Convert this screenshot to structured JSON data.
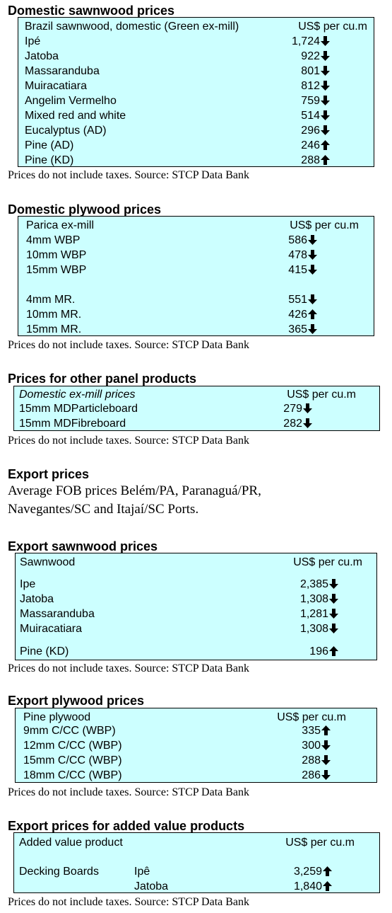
{
  "domestic_sawnwood": {
    "title": "Domestic sawnwood prices",
    "header_label": "Brazil sawnwood, domestic (Green ex-mill)",
    "header_unit": "US$ per cu.m",
    "rows": [
      {
        "label": "Ipé",
        "value": "1,724",
        "trend": "down"
      },
      {
        "label": "Jatoba",
        "value": "922",
        "trend": "down"
      },
      {
        "label": "Massaranduba",
        "value": "801",
        "trend": "down"
      },
      {
        "label": "Muiracatiara",
        "value": "812",
        "trend": "down"
      },
      {
        "label": "Angelim Vermelho",
        "value": "759",
        "trend": "down"
      },
      {
        "label": "Mixed red and white",
        "value": "514",
        "trend": "down"
      },
      {
        "label": "Eucalyptus (AD)",
        "value": "296",
        "trend": "down"
      },
      {
        "label": "Pine (AD)",
        "value": "246",
        "trend": "up"
      },
      {
        "label": "Pine (KD)",
        "value": "288",
        "trend": "up"
      }
    ],
    "note": "Prices do not include taxes. Source: STCP Data Bank"
  },
  "domestic_plywood": {
    "title": "Domestic plywood prices",
    "header_label": "Parica ex-mill",
    "header_unit": "US$ per cu.m",
    "rows": [
      {
        "label": "4mm WBP",
        "value": "586",
        "trend": "down"
      },
      {
        "label": "10mm WBP",
        "value": "478",
        "trend": "down"
      },
      {
        "label": "15mm WBP",
        "value": "415",
        "trend": "down"
      },
      {
        "label": "4mm MR.",
        "value": "551",
        "trend": "down"
      },
      {
        "label": "10mm MR.",
        "value": "426",
        "trend": "up"
      },
      {
        "label": "15mm MR.",
        "value": "365",
        "trend": "down"
      }
    ],
    "note": "Prices do not include taxes. Source: STCP Data Bank"
  },
  "other_panels": {
    "title": "Prices for other panel products",
    "header_label": "Domestic ex-mill prices",
    "header_unit": "US$ per cu.m",
    "rows": [
      {
        "label": "15mm MDParticleboard",
        "value": "279",
        "trend": "down"
      },
      {
        "label": "15mm MDFibreboard",
        "value": "282",
        "trend": "down"
      }
    ],
    "note": "Prices do not include taxes. Source: STCP Data Bank"
  },
  "export_prices": {
    "title": "Export prices",
    "line1": "Average FOB prices Belém/PA, Paranaguá/PR,",
    "line2": "Navegantes/SC and Itajaí/SC Ports."
  },
  "export_sawnwood": {
    "title": "Export sawnwood prices",
    "header_label": "Sawnwood",
    "header_unit": "US$ per cu.m",
    "rows": [
      {
        "label": "Ipe",
        "value": "2,385",
        "trend": "down"
      },
      {
        "label": "Jatoba",
        "value": "1,308",
        "trend": "down"
      },
      {
        "label": "Massaranduba",
        "value": "1,281",
        "trend": "down"
      },
      {
        "label": "Muiracatiara",
        "value": "1,308",
        "trend": "down"
      },
      {
        "label": "Pine (KD)",
        "value": "196",
        "trend": "up"
      }
    ],
    "note": "Prices do not include taxes. Source: STCP Data Bank"
  },
  "export_plywood": {
    "title": "Export plywood prices",
    "header_label": "Pine plywood",
    "header_unit": "US$ per cu.m",
    "rows": [
      {
        "label": "9mm C/CC (WBP)",
        "value": "335",
        "trend": "up"
      },
      {
        "label": "12mm C/CC (WBP)",
        "value": "300",
        "trend": "down"
      },
      {
        "label": "15mm C/CC (WBP)",
        "value": "288",
        "trend": "down"
      },
      {
        "label": "18mm C/CC (WBP)",
        "value": "286",
        "trend": "down"
      }
    ],
    "note": "Prices do not include taxes. Source: STCP Data Bank"
  },
  "export_added_value": {
    "title": "Export prices for added value products",
    "header_label": "Added value product",
    "header_unit": "US$ per cu.m",
    "product": "Decking Boards",
    "rows": [
      {
        "label": "Ipê",
        "value": "3,259",
        "trend": "up"
      },
      {
        "label": "Jatoba",
        "value": "1,840",
        "trend": "up"
      }
    ],
    "note": "Prices do not include taxes. Source: STCP Data Bank"
  },
  "colors": {
    "table_bg": "#ccffff",
    "text": "#000000"
  }
}
